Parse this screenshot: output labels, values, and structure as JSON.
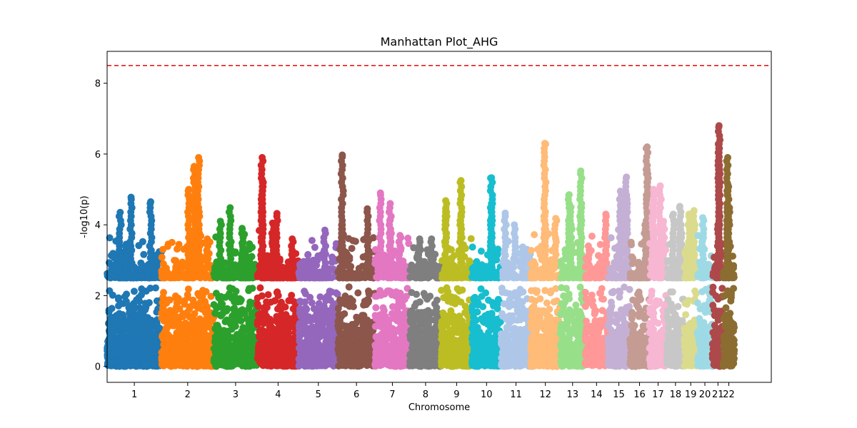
{
  "chart_data": {
    "type": "scatter",
    "title": "Manhattan Plot_AHG",
    "xlabel": "Chromosome",
    "ylabel": "-log10(p)",
    "ylim": [
      -0.45,
      8.9
    ],
    "xlim": [
      0,
      3050
    ],
    "y_ticks": [
      0,
      2,
      4,
      6,
      8
    ],
    "grid": false,
    "legend": "none",
    "threshold": {
      "value": 8.5,
      "color": "#e41a1c",
      "style": "dashed"
    },
    "chromosomes": [
      {
        "label": "1",
        "start": 0,
        "end": 250,
        "color": "#1f77b4",
        "max_y": 4.8,
        "peaks": [
          [
            110,
            4.78
          ],
          [
            60,
            4.35
          ],
          [
            200,
            4.65
          ],
          [
            85,
            3.4
          ]
        ]
      },
      {
        "label": "2",
        "start": 250,
        "end": 490,
        "color": "#ff7f0e",
        "max_y": 5.9,
        "peaks": [
          [
            420,
            5.9
          ],
          [
            400,
            5.65
          ],
          [
            375,
            5.0
          ],
          [
            460,
            3.6
          ]
        ]
      },
      {
        "label": "3",
        "start": 490,
        "end": 690,
        "color": "#2ca02c",
        "max_y": 4.5,
        "peaks": [
          [
            565,
            4.48
          ],
          [
            520,
            4.1
          ],
          [
            620,
            3.9
          ],
          [
            640,
            3.3
          ]
        ]
      },
      {
        "label": "4",
        "start": 690,
        "end": 880,
        "color": "#d62728",
        "max_y": 5.9,
        "peaks": [
          [
            712,
            5.9
          ],
          [
            712,
            5.28
          ],
          [
            780,
            4.32
          ],
          [
            712,
            4.42
          ],
          [
            850,
            3.6
          ],
          [
            760,
            4.05
          ]
        ]
      },
      {
        "label": "5",
        "start": 880,
        "end": 1060,
        "color": "#9467bd",
        "max_y": 3.9,
        "peaks": [
          [
            1000,
            3.85
          ],
          [
            950,
            3.0
          ]
        ]
      },
      {
        "label": "6",
        "start": 1060,
        "end": 1230,
        "color": "#8c564b",
        "max_y": 6.0,
        "peaks": [
          [
            1080,
            5.97
          ],
          [
            1195,
            4.45
          ],
          [
            1080,
            4.0
          ]
        ]
      },
      {
        "label": "7",
        "start": 1230,
        "end": 1390,
        "color": "#e377c2",
        "max_y": 4.9,
        "peaks": [
          [
            1255,
            4.9
          ],
          [
            1300,
            4.6
          ],
          [
            1300,
            4.15
          ],
          [
            1345,
            3.7
          ]
        ]
      },
      {
        "label": "8",
        "start": 1390,
        "end": 1535,
        "color": "#7f7f7f",
        "max_y": 3.65,
        "peaks": [
          [
            1435,
            3.6
          ],
          [
            1490,
            3.6
          ]
        ]
      },
      {
        "label": "9",
        "start": 1535,
        "end": 1675,
        "color": "#bcbd22",
        "max_y": 5.3,
        "peaks": [
          [
            1625,
            5.25
          ],
          [
            1555,
            4.68
          ],
          [
            1625,
            4.3
          ],
          [
            1555,
            4.45
          ]
        ]
      },
      {
        "label": "10",
        "start": 1675,
        "end": 1810,
        "color": "#17becf",
        "max_y": 5.35,
        "peaks": [
          [
            1765,
            5.33
          ],
          [
            1765,
            4.6
          ],
          [
            1765,
            4.2
          ]
        ]
      },
      {
        "label": "11",
        "start": 1810,
        "end": 1945,
        "color": "#aec7e8",
        "max_y": 4.35,
        "peaks": [
          [
            1828,
            4.33
          ],
          [
            1870,
            4.0
          ]
        ]
      },
      {
        "label": "12",
        "start": 1945,
        "end": 2080,
        "color": "#ffbb78",
        "max_y": 6.3,
        "peaks": [
          [
            2010,
            6.3
          ],
          [
            2010,
            4.25
          ],
          [
            2060,
            4.18
          ]
        ]
      },
      {
        "label": "13",
        "start": 2080,
        "end": 2195,
        "color": "#98df8a",
        "max_y": 5.5,
        "peaks": [
          [
            2175,
            5.52
          ],
          [
            2122,
            4.85
          ],
          [
            2175,
            4.5
          ],
          [
            2130,
            4.5
          ]
        ]
      },
      {
        "label": "14",
        "start": 2195,
        "end": 2300,
        "color": "#ff9896",
        "max_y": 4.3,
        "peaks": [
          [
            2290,
            4.3
          ],
          [
            2210,
            3.4
          ]
        ]
      },
      {
        "label": "15",
        "start": 2300,
        "end": 2400,
        "color": "#c5b0d5",
        "max_y": 5.35,
        "peaks": [
          [
            2385,
            5.35
          ],
          [
            2357,
            4.95
          ],
          [
            2357,
            4.55
          ],
          [
            2385,
            4.8
          ]
        ]
      },
      {
        "label": "16",
        "start": 2400,
        "end": 2490,
        "color": "#c49c94",
        "max_y": 6.2,
        "peaks": [
          [
            2480,
            6.2
          ],
          [
            2480,
            5.55
          ],
          [
            2480,
            4.3
          ],
          [
            2470,
            4.0
          ]
        ]
      },
      {
        "label": "17",
        "start": 2490,
        "end": 2570,
        "color": "#f7b6d2",
        "max_y": 5.1,
        "peaks": [
          [
            2540,
            5.1
          ],
          [
            2510,
            5.0
          ],
          [
            2505,
            4.6
          ],
          [
            2555,
            4.1
          ]
        ]
      },
      {
        "label": "18",
        "start": 2570,
        "end": 2650,
        "color": "#c7c7c7",
        "max_y": 4.5,
        "peaks": [
          [
            2630,
            4.52
          ],
          [
            2600,
            4.3
          ],
          [
            2635,
            4.0
          ]
        ]
      },
      {
        "label": "19",
        "start": 2650,
        "end": 2710,
        "color": "#dbdb8d",
        "max_y": 4.4,
        "peaks": [
          [
            2695,
            4.4
          ],
          [
            2672,
            4.3
          ]
        ]
      },
      {
        "label": "20",
        "start": 2710,
        "end": 2780,
        "color": "#9edae5",
        "max_y": 4.2,
        "peaks": [
          [
            2735,
            4.2
          ]
        ]
      },
      {
        "label": "21",
        "start": 2780,
        "end": 2830,
        "color": "#ad494a",
        "max_y": 6.8,
        "peaks": [
          [
            2810,
            6.8
          ],
          [
            2810,
            6.3
          ],
          [
            2805,
            4.0
          ]
        ]
      },
      {
        "label": "22",
        "start": 2830,
        "end": 2880,
        "color": "#8c6d31",
        "max_y": 5.9,
        "peaks": [
          [
            2850,
            5.9
          ],
          [
            2850,
            5.15
          ],
          [
            2855,
            4.5
          ]
        ]
      }
    ]
  }
}
